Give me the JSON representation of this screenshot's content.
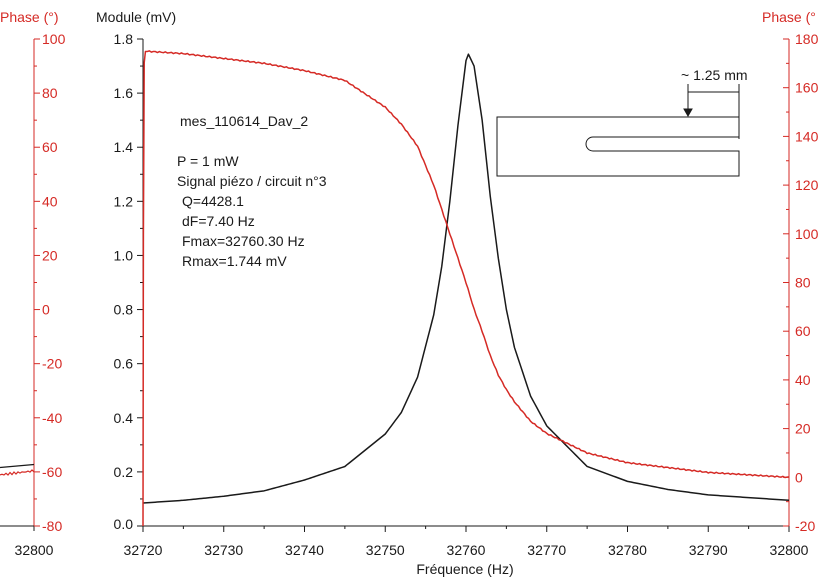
{
  "chart_data": {
    "type": "line",
    "left_panel": {
      "right_axis_ticks": [
        100,
        80,
        60,
        40,
        20,
        0,
        -20,
        -40,
        -60,
        -80
      ],
      "x_tick_label": "32800",
      "phase_tail_value": -60,
      "module_tail_value": 0.22
    },
    "xlabel": "Fréquence (Hz)",
    "ylabel_left": "Module (mV)",
    "ylabel_left_panel": "Phase (°)",
    "ylabel_right": "Phase (°",
    "xlim": [
      32720,
      32800
    ],
    "ylim_left": [
      0,
      1.8
    ],
    "ylim_right": [
      -20,
      180
    ],
    "x_ticks": [
      32720,
      32730,
      32740,
      32750,
      32760,
      32770,
      32780,
      32790,
      32800
    ],
    "y_ticks_left": [
      "0.0",
      "0.2",
      "0.4",
      "0.6",
      "0.8",
      "1.0",
      "1.2",
      "1.4",
      "1.6",
      "1.8"
    ],
    "y_ticks_right": [
      -20,
      0,
      20,
      40,
      60,
      80,
      100,
      120,
      140,
      160,
      180
    ],
    "series": [
      {
        "name": "Module",
        "axis": "left",
        "color": "#1a1a1a",
        "x": [
          32720,
          32725,
          32730,
          32735,
          32740,
          32745,
          32750,
          32752,
          32754,
          32756,
          32757,
          32758,
          32759,
          32760,
          32760.3,
          32761,
          32762,
          32763,
          32764,
          32765,
          32766,
          32768,
          32770,
          32775,
          32780,
          32785,
          32790,
          32795,
          32800
        ],
        "values": [
          0.085,
          0.095,
          0.11,
          0.13,
          0.17,
          0.22,
          0.34,
          0.42,
          0.55,
          0.78,
          0.96,
          1.2,
          1.48,
          1.72,
          1.744,
          1.7,
          1.5,
          1.22,
          0.99,
          0.8,
          0.66,
          0.48,
          0.37,
          0.22,
          0.165,
          0.135,
          0.115,
          0.105,
          0.095
        ]
      },
      {
        "name": "Phase",
        "axis": "right",
        "color": "#d52a25",
        "x": [
          32720,
          32720.05,
          32720.15,
          32720.3,
          32725,
          32730,
          32735,
          32740,
          32745,
          32750,
          32752,
          32754,
          32756,
          32757,
          32758,
          32759,
          32760,
          32761,
          32762,
          32763,
          32764,
          32765,
          32766,
          32768,
          32770,
          32775,
          32780,
          32785,
          32790,
          32795,
          32800
        ],
        "values": [
          -20,
          100,
          170,
          175,
          174,
          172,
          170,
          167,
          163,
          152,
          145,
          136,
          120,
          110,
          100,
          90,
          80,
          69,
          60,
          50,
          42,
          36,
          31,
          23,
          18,
          10,
          6,
          4,
          2,
          1,
          0
        ]
      }
    ],
    "annotations": {
      "title": "mes_110614_Dav_2",
      "params": [
        "P = 1 mW",
        "Signal piézo / circuit n°3",
        "Q=4428.1",
        "dF=7.40 Hz",
        "Fmax=32760.30 Hz",
        "Rmax=1.744 mV"
      ],
      "dimension": "~ 1.25 mm"
    },
    "grid": false
  }
}
